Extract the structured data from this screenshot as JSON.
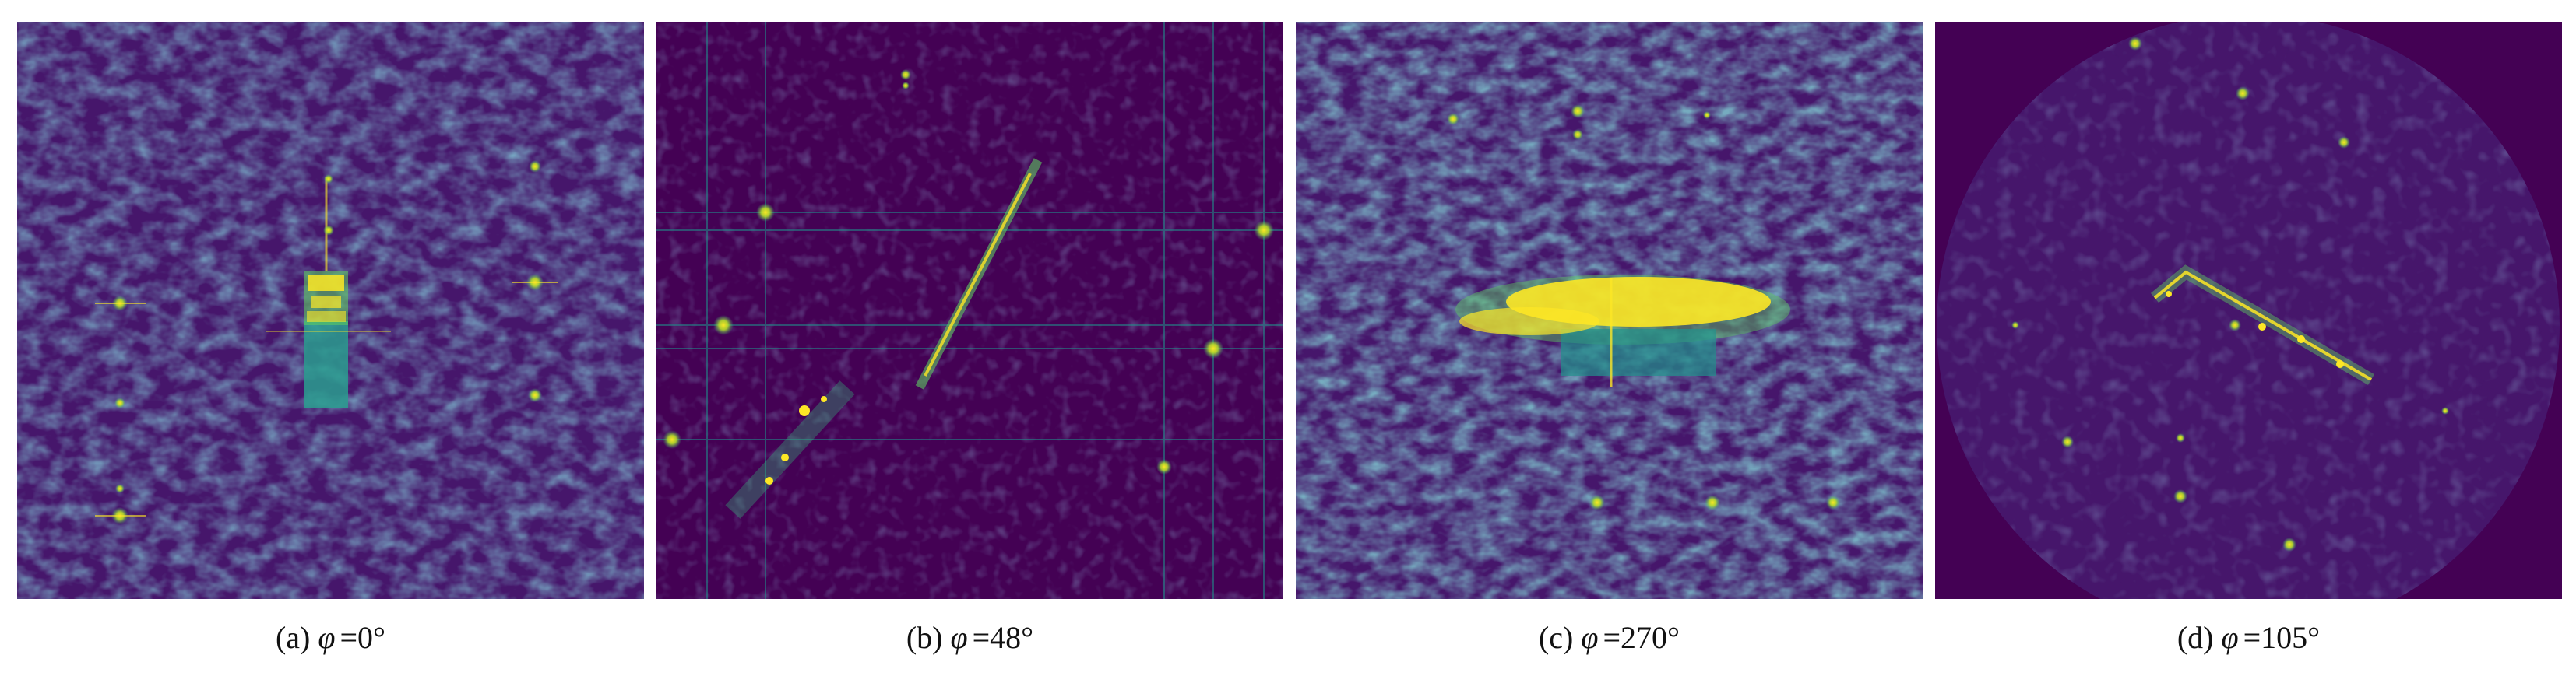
{
  "figure": {
    "panels": [
      {
        "id": "a",
        "label": "(a)",
        "symbol": "φ",
        "value": "=0°",
        "caption": "(a) φ =0°",
        "target_shape": "vertical rectangle with bright top section"
      },
      {
        "id": "b",
        "label": "(b)",
        "symbol": "φ",
        "value": "=48°",
        "caption": "(b) φ =48°",
        "target_shape": "diagonal streak rising to the right"
      },
      {
        "id": "c",
        "label": "(c)",
        "symbol": "φ",
        "value": "=270°",
        "caption": "(c) φ =270°",
        "target_shape": "horizontal elongated bright blob"
      },
      {
        "id": "d",
        "label": "(d)",
        "symbol": "φ",
        "value": "=105°",
        "caption": "(d) φ =105°",
        "target_shape": "diagonal streak descending to the right with circular aperture"
      }
    ],
    "colors": {
      "background_dark": "#440154",
      "background_mid": "#3b2a7a",
      "speckle": "#31688e",
      "speckle_light": "#21918c",
      "highlight": "#fde725",
      "highlight_green": "#5ec962",
      "border": "#ffffff"
    }
  }
}
